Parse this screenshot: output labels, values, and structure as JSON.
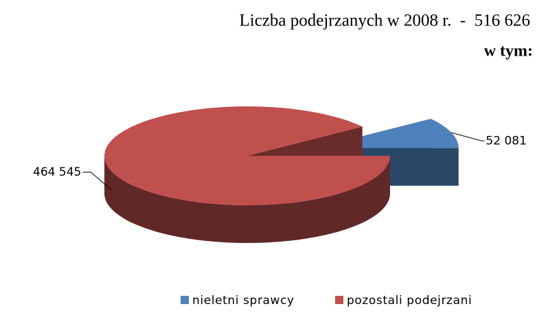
{
  "chart_data": {
    "type": "pie",
    "title": "Liczba podejrzanych w 2008 r.  -  516 626",
    "subtitle": "w tym:",
    "categories": [
      "nieletni sprawcy",
      "pozostali podejrzani"
    ],
    "values": [
      52081,
      464545
    ],
    "value_labels": [
      "52 081",
      "464 545"
    ],
    "colors": [
      "#4f81bd",
      "#c0504d"
    ],
    "legend": "bottom"
  }
}
